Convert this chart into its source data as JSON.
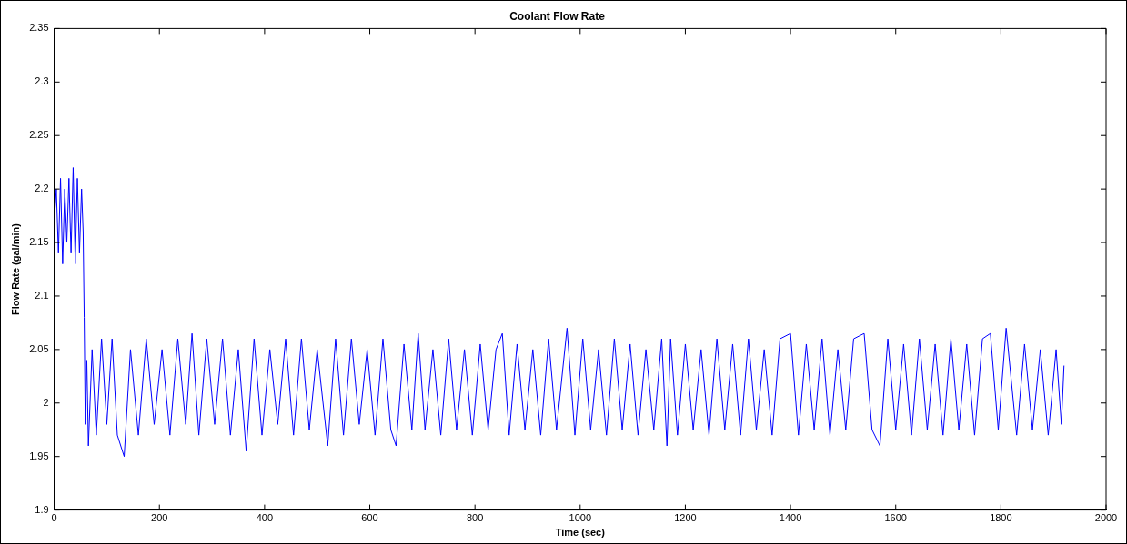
{
  "chart_data": {
    "type": "line",
    "title": "Coolant Flow Rate",
    "xlabel": "Time (sec)",
    "ylabel": "Flow Rate (gal/min)",
    "xlim": [
      0,
      2000
    ],
    "xticks": [
      0,
      200,
      400,
      600,
      800,
      1000,
      1200,
      1400,
      1600,
      1800,
      2000
    ],
    "ylim": [
      1.9,
      2.35
    ],
    "yticks": [
      1.9,
      1.95,
      2,
      2.05,
      2.1,
      2.15,
      2.2,
      2.25,
      2.3,
      2.35
    ],
    "grid": false,
    "legend": false,
    "marker": "none",
    "line_style": "solid",
    "series": [
      {
        "color": "#0000ff",
        "x": [
          0,
          4,
          8,
          12,
          16,
          20,
          24,
          28,
          32,
          36,
          40,
          44,
          48,
          52,
          55,
          57,
          59,
          62,
          65,
          72,
          80,
          90,
          100,
          110,
          120,
          133,
          145,
          160,
          175,
          190,
          205,
          220,
          235,
          250,
          262,
          275,
          290,
          305,
          320,
          335,
          350,
          365,
          380,
          395,
          410,
          425,
          440,
          455,
          470,
          485,
          500,
          520,
          535,
          550,
          565,
          580,
          595,
          610,
          625,
          640,
          650,
          665,
          680,
          692,
          705,
          720,
          735,
          750,
          765,
          780,
          795,
          810,
          825,
          840,
          852,
          865,
          880,
          895,
          910,
          925,
          940,
          955,
          975,
          990,
          1005,
          1020,
          1035,
          1050,
          1065,
          1080,
          1095,
          1110,
          1125,
          1140,
          1155,
          1165,
          1172,
          1185,
          1200,
          1215,
          1230,
          1245,
          1260,
          1275,
          1290,
          1305,
          1320,
          1335,
          1350,
          1365,
          1380,
          1400,
          1415,
          1430,
          1445,
          1460,
          1475,
          1490,
          1505,
          1520,
          1540,
          1555,
          1570,
          1585,
          1600,
          1615,
          1630,
          1645,
          1660,
          1675,
          1690,
          1705,
          1720,
          1735,
          1750,
          1765,
          1780,
          1795,
          1810,
          1830,
          1845,
          1860,
          1875,
          1890,
          1905,
          1915,
          1920
        ],
        "values": [
          2.17,
          2.2,
          2.14,
          2.21,
          2.13,
          2.2,
          2.15,
          2.21,
          2.14,
          2.22,
          2.13,
          2.21,
          2.14,
          2.2,
          2.16,
          2.08,
          1.98,
          2.04,
          1.96,
          2.05,
          1.97,
          2.06,
          1.98,
          2.06,
          1.97,
          1.95,
          2.05,
          1.97,
          2.06,
          1.98,
          2.05,
          1.97,
          2.06,
          1.98,
          2.065,
          1.97,
          2.06,
          1.98,
          2.06,
          1.97,
          2.05,
          1.955,
          2.06,
          1.97,
          2.05,
          1.98,
          2.06,
          1.97,
          2.06,
          1.975,
          2.05,
          1.96,
          2.06,
          1.97,
          2.06,
          1.98,
          2.05,
          1.97,
          2.06,
          1.975,
          1.96,
          2.055,
          1.975,
          2.065,
          1.975,
          2.05,
          1.97,
          2.06,
          1.975,
          2.05,
          1.97,
          2.055,
          1.975,
          2.05,
          2.065,
          1.97,
          2.055,
          1.975,
          2.05,
          1.97,
          2.06,
          1.975,
          2.07,
          1.97,
          2.06,
          1.975,
          2.05,
          1.97,
          2.06,
          1.975,
          2.055,
          1.97,
          2.05,
          1.975,
          2.06,
          1.96,
          2.06,
          1.97,
          2.055,
          1.975,
          2.05,
          1.97,
          2.06,
          1.975,
          2.055,
          1.97,
          2.06,
          1.975,
          2.05,
          1.97,
          2.06,
          2.065,
          1.97,
          2.055,
          1.975,
          2.06,
          1.97,
          2.05,
          1.975,
          2.06,
          2.065,
          1.975,
          1.96,
          2.06,
          1.975,
          2.055,
          1.97,
          2.06,
          1.975,
          2.055,
          1.97,
          2.06,
          1.975,
          2.055,
          1.97,
          2.06,
          2.065,
          1.975,
          2.07,
          1.97,
          2.055,
          1.975,
          2.05,
          1.97,
          2.05,
          1.98,
          2.035
        ]
      }
    ]
  }
}
